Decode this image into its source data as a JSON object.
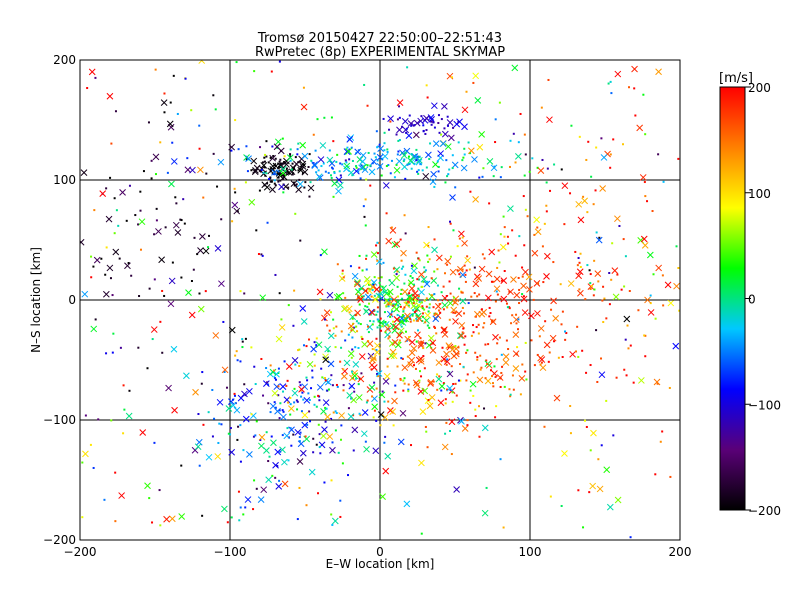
{
  "chart_data": {
    "type": "scatter",
    "title": "Tromsø 20150427 22:50:00–22:51:43",
    "subtitle": "RwPretec (8p) EXPERIMENTAL SKYMAP",
    "xlabel": "E–W location [km]",
    "ylabel": "N–S location [km]",
    "xlim": [
      -200,
      200
    ],
    "ylim": [
      -200,
      200
    ],
    "xticks": [
      -200,
      -100,
      0,
      100,
      200
    ],
    "yticks": [
      -200,
      -100,
      0,
      100,
      200
    ],
    "xtick_labels": [
      "−200",
      "−100",
      "0",
      "100",
      "200"
    ],
    "ytick_labels": [
      "−200",
      "−100",
      "0",
      "100",
      "200"
    ],
    "grid": true,
    "grid_values": [
      -100,
      0,
      100
    ],
    "markers": [
      "x",
      "dot"
    ],
    "colorbar": {
      "label": "[m/s]",
      "range": [
        -200,
        200
      ],
      "ticks": [
        -200,
        -100,
        0,
        100,
        200
      ],
      "tick_labels": [
        "−200",
        "−100",
        "0",
        "100",
        "200"
      ],
      "colormap": [
        "#000000",
        "#5a0078",
        "#0000ff",
        "#00c8ff",
        "#00ff00",
        "#ffff00",
        "#ff8000",
        "#ff0000"
      ]
    },
    "clusters": [
      {
        "center": [
          10,
          0
        ],
        "spread": [
          18,
          18
        ],
        "count": 260,
        "velocity_mean": 20,
        "velocity_sd": 40
      },
      {
        "center": [
          50,
          -15
        ],
        "spread": [
          40,
          35
        ],
        "count": 380,
        "velocity_mean": 170,
        "velocity_sd": 25
      },
      {
        "center": [
          -65,
          107
        ],
        "spread": [
          10,
          7
        ],
        "count": 120,
        "velocity_mean": -195,
        "velocity_sd": 8
      },
      {
        "center": [
          -5,
          115
        ],
        "spread": [
          50,
          10
        ],
        "count": 220,
        "velocity_mean": -30,
        "velocity_sd": 35
      },
      {
        "center": [
          30,
          147
        ],
        "spread": [
          15,
          5
        ],
        "count": 55,
        "velocity_mean": -110,
        "velocity_sd": 15
      },
      {
        "center": [
          -55,
          -95
        ],
        "spread": [
          30,
          35
        ],
        "count": 220,
        "velocity_mean": -60,
        "velocity_sd": 50
      },
      {
        "center": [
          -150,
          60
        ],
        "spread": [
          40,
          60
        ],
        "count": 110,
        "velocity_mean": -180,
        "velocity_sd": 30
      },
      {
        "center": [
          130,
          40
        ],
        "spread": [
          50,
          70
        ],
        "count": 160,
        "velocity_mean": 160,
        "velocity_sd": 60
      },
      {
        "center": [
          0,
          -70
        ],
        "spread": [
          40,
          25
        ],
        "count": 170,
        "velocity_mean": 90,
        "velocity_sd": 90
      },
      {
        "center": [
          0,
          0
        ],
        "spread": [
          200,
          200
        ],
        "count": 320,
        "velocity_mean": 60,
        "velocity_sd": 140,
        "uniform": true
      }
    ]
  }
}
